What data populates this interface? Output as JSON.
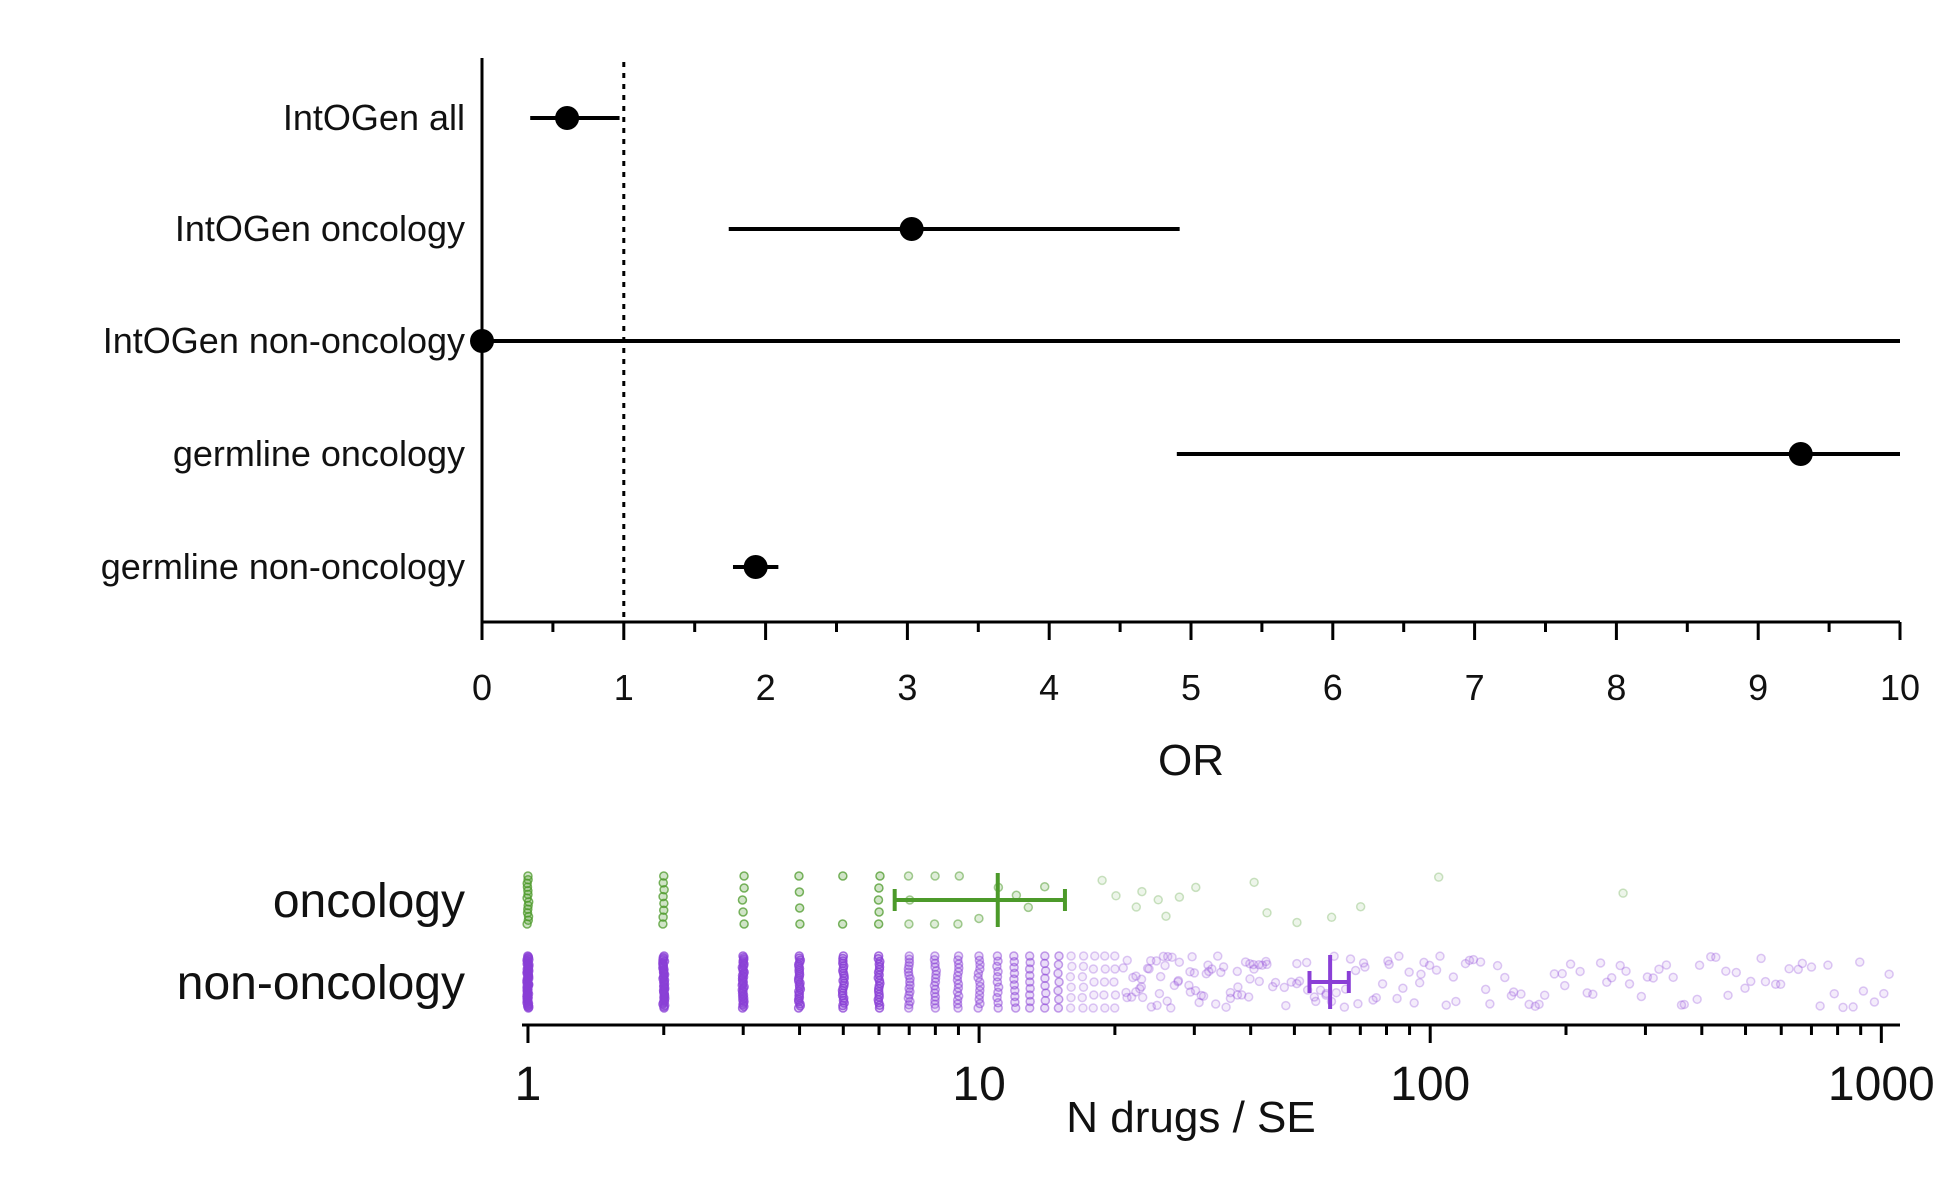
{
  "chart_data": [
    {
      "type": "forest",
      "categories": [
        "IntOGen all",
        "IntOGen oncology",
        "IntOGen non-oncology",
        "germline oncology",
        "germline non-oncology"
      ],
      "series": [
        {
          "points": [
            {
              "label": "IntOGen all",
              "or": 0.6,
              "ci_low": 0.34,
              "ci_high": 0.97
            },
            {
              "label": "IntOGen oncology",
              "or": 3.03,
              "ci_low": 1.74,
              "ci_high": 4.92
            },
            {
              "label": "IntOGen non-oncology",
              "or": 0.0,
              "ci_low": 0.0,
              "ci_high": 10.0
            },
            {
              "label": "germline oncology",
              "or": 9.3,
              "ci_low": 4.9,
              "ci_high": 10.0
            },
            {
              "label": "germline non-oncology",
              "or": 1.93,
              "ci_low": 1.77,
              "ci_high": 2.09
            }
          ]
        }
      ],
      "reference_line": 1,
      "xlim": [
        0,
        10
      ],
      "xticks": [
        "0",
        "1",
        "2",
        "3",
        "4",
        "5",
        "6",
        "7",
        "8",
        "9",
        "10"
      ],
      "xlabel": "OR"
    },
    {
      "type": "scatter",
      "categories": [
        "oncology",
        "non-oncology"
      ],
      "x_scale": "log",
      "xlim": [
        0.97,
        1100
      ],
      "xticks": [
        "1",
        "10",
        "100",
        "1000"
      ],
      "xlabel": "N drugs / SE",
      "series": [
        {
          "name": "oncology",
          "color": "#4c9a2a",
          "mean": 11,
          "ci": [
            6.5,
            15.5
          ],
          "values": [
            1,
            1,
            1,
            1,
            1,
            1,
            1,
            1,
            1,
            1,
            1,
            1,
            1,
            1,
            2,
            2,
            2,
            2,
            2,
            2,
            2,
            2,
            3,
            3,
            3,
            3,
            3,
            4,
            4,
            4,
            4,
            5,
            5,
            6,
            6,
            6,
            6,
            6,
            7,
            7,
            7,
            8,
            8,
            9,
            9,
            10,
            11,
            12,
            13,
            14,
            19,
            20,
            22,
            23,
            25,
            26,
            28,
            30,
            41,
            43,
            50,
            60,
            70,
            105,
            270
          ]
        },
        {
          "name": "non-oncology",
          "color": "#8a3fd6",
          "mean": 60,
          "ci": [
            54,
            66
          ],
          "values": [
            1,
            1,
            1,
            1,
            1,
            1,
            1,
            1,
            1,
            1,
            1,
            1,
            1,
            1,
            1,
            1,
            1,
            1,
            1,
            1,
            1,
            1,
            1,
            1,
            1,
            1,
            1,
            1,
            1,
            1,
            1,
            1,
            1,
            1,
            1,
            1,
            1,
            1,
            1,
            1,
            1,
            1,
            1,
            1,
            1,
            1,
            1,
            1,
            1,
            1,
            1,
            1,
            1,
            1,
            1,
            1,
            1,
            1,
            1,
            1,
            2,
            2,
            2,
            2,
            2,
            2,
            2,
            2,
            2,
            2,
            2,
            2,
            2,
            2,
            2,
            2,
            2,
            2,
            2,
            2,
            2,
            2,
            2,
            2,
            2,
            2,
            2,
            2,
            2,
            2,
            2,
            2,
            2,
            2,
            2,
            2,
            2,
            2,
            2,
            2,
            3,
            3,
            3,
            3,
            3,
            3,
            3,
            3,
            3,
            3,
            3,
            3,
            3,
            3,
            3,
            3,
            3,
            3,
            3,
            3,
            3,
            3,
            3,
            3,
            3,
            3,
            3,
            3,
            3,
            3,
            3,
            3,
            3,
            4,
            4,
            4,
            4,
            4,
            4,
            4,
            4,
            4,
            4,
            4,
            4,
            4,
            4,
            4,
            4,
            4,
            4,
            4,
            4,
            4,
            4,
            4,
            4,
            4,
            4,
            5,
            5,
            5,
            5,
            5,
            5,
            5,
            5,
            5,
            5,
            5,
            5,
            5,
            5,
            5,
            5,
            5,
            5,
            5,
            5,
            5,
            5,
            6,
            6,
            6,
            6,
            6,
            6,
            6,
            6,
            6,
            6,
            6,
            6,
            6,
            6,
            6,
            6,
            6,
            6,
            6,
            6,
            7,
            7,
            7,
            7,
            7,
            7,
            7,
            7,
            7,
            7,
            7,
            7,
            7,
            7,
            7,
            7,
            7,
            8,
            8,
            8,
            8,
            8,
            8,
            8,
            8,
            8,
            8,
            8,
            8,
            8,
            8,
            8,
            9,
            9,
            9,
            9,
            9,
            9,
            9,
            9,
            9,
            9,
            9,
            9,
            9,
            9,
            10,
            10,
            10,
            10,
            10,
            10,
            10,
            10,
            10,
            10,
            10,
            10,
            10,
            11,
            11,
            11,
            11,
            11,
            11,
            11,
            11,
            11,
            11,
            11,
            12,
            12,
            12,
            12,
            12,
            12,
            12,
            12,
            12,
            12,
            13,
            13,
            13,
            13,
            13,
            13,
            13,
            13,
            13,
            14,
            14,
            14,
            14,
            14,
            14,
            14,
            14,
            15,
            15,
            15,
            15,
            15,
            15,
            15,
            16,
            16,
            16,
            16,
            16,
            16,
            17,
            17,
            17,
            17,
            17,
            17,
            18,
            18,
            18,
            18,
            18,
            19,
            19,
            19,
            19,
            19,
            20,
            20,
            20,
            20,
            20,
            21,
            21,
            21,
            21,
            22,
            22,
            22,
            22,
            23,
            23,
            23,
            23,
            24,
            24,
            24,
            24,
            25,
            25,
            25,
            25,
            26,
            26,
            26,
            26,
            27,
            27,
            27,
            28,
            28,
            28,
            29,
            29,
            29,
            30,
            30,
            30,
            31,
            31,
            31,
            32,
            32,
            32,
            33,
            33,
            34,
            34,
            35,
            35,
            36,
            36,
            37,
            37,
            38,
            38,
            39,
            39,
            40,
            40,
            41,
            41,
            42,
            42,
            43,
            43,
            44,
            45,
            46,
            47,
            48,
            49,
            50,
            51,
            52,
            53,
            54,
            55,
            56,
            57,
            58,
            59,
            60,
            61,
            62,
            64,
            65,
            66,
            68,
            70,
            71,
            72,
            74,
            76,
            78,
            80,
            82,
            84,
            86,
            88,
            90,
            92,
            94,
            96,
            98,
            100,
            103,
            106,
            109,
            112,
            115,
            118,
            121,
            125,
            129,
            133,
            137,
            141,
            145,
            150,
            155,
            160,
            165,
            170,
            176,
            182,
            188,
            194,
            200,
            207,
            214,
            221,
            228,
            236,
            244,
            252,
            261,
            270,
            280,
            290,
            300,
            311,
            322,
            334,
            346,
            358,
            371,
            385,
            400,
            415,
            430,
            446,
            463,
            480,
            498,
            517,
            537,
            558,
            580,
            603,
            627,
            652,
            678,
            705,
            733,
            762,
            792,
            823,
            855,
            890,
            925,
            960,
            1000,
            1040
          ]
        }
      ]
    }
  ]
}
